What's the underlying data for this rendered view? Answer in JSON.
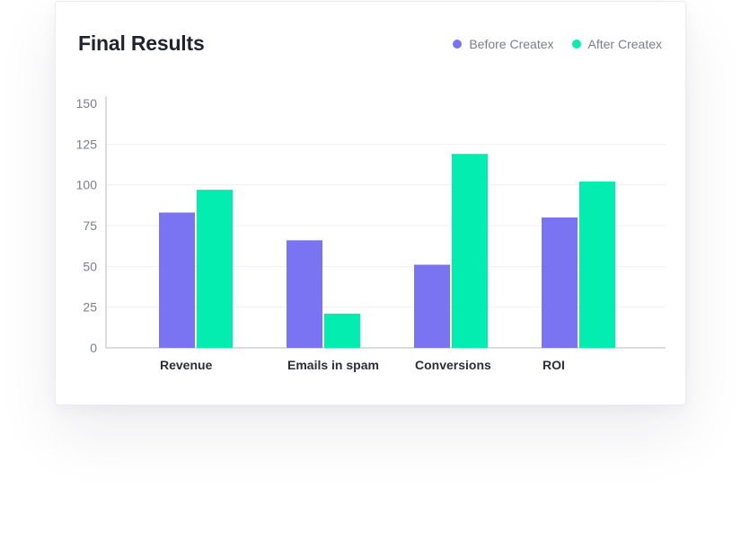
{
  "colors": {
    "before": "#7a74f2",
    "after": "#04edb1",
    "axis": "#b7b9c2",
    "grid": "#f1f1f4"
  },
  "chart_data": {
    "type": "bar",
    "title": "Final Results",
    "xlabel": "",
    "ylabel": "",
    "ylim": [
      0,
      150
    ],
    "yticks": [
      "150",
      "125",
      "100",
      "75",
      "50",
      "25",
      "0"
    ],
    "grid": true,
    "legend_position": "top-right",
    "categories": [
      "Revenue",
      "Emails in spam",
      "Conversions",
      "ROI"
    ],
    "series": [
      {
        "name": "Before Createx",
        "values": [
          83,
          66,
          51,
          80
        ]
      },
      {
        "name": "After Createx",
        "values": [
          97,
          21,
          119,
          102
        ]
      }
    ]
  }
}
